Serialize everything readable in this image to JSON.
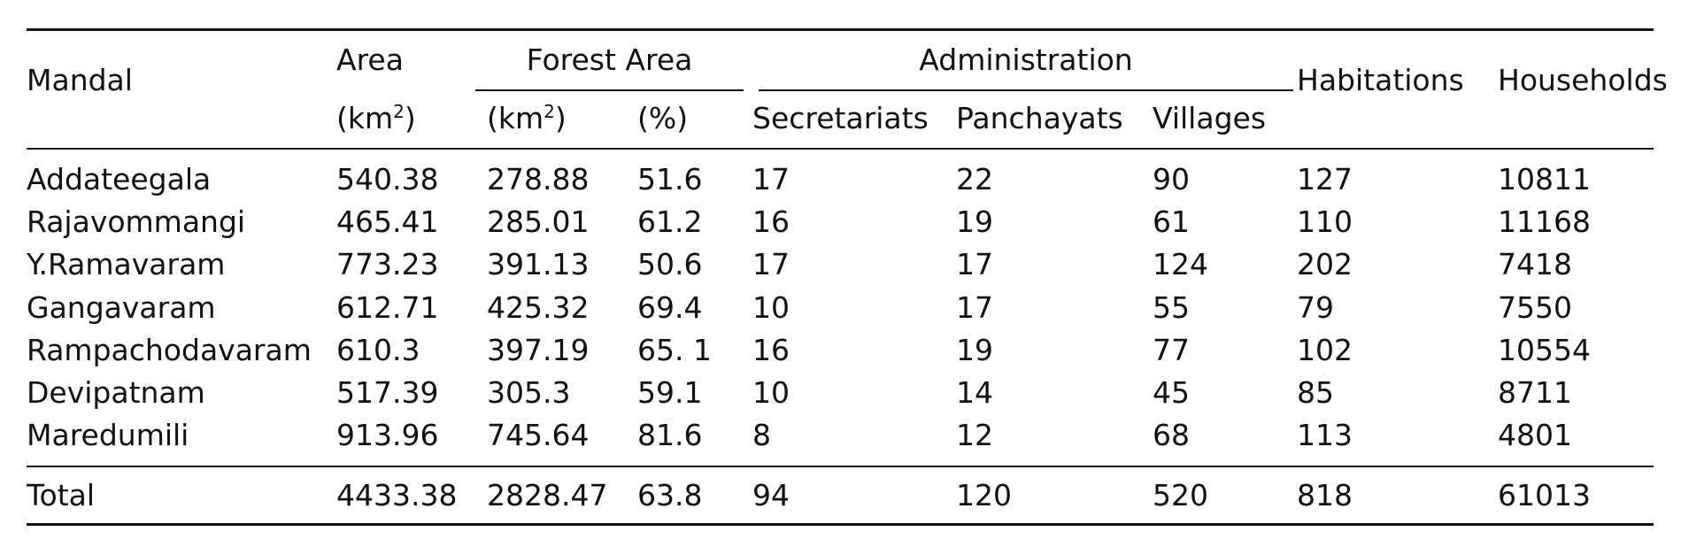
{
  "table": {
    "headers": {
      "mandal": "Mandal",
      "area": "Area",
      "area_unit_base": "(km",
      "area_unit_exp": "2",
      "area_unit_close": ")",
      "forest_area": "Forest Area",
      "forest_km_base": "(km",
      "forest_km_exp": "2",
      "forest_km_close": ")",
      "forest_pct": "(%)",
      "administration": "Administration",
      "secretariats": "Secretariats",
      "panchayats": "Panchayats",
      "villages": "Villages",
      "habitations": "Habitations",
      "households": "Households"
    },
    "rows": [
      {
        "mandal": "Addateegala",
        "area": "540.38",
        "forest_km2": "278.88",
        "forest_pct": "51.6",
        "secretariats": "17",
        "panchayats": "22",
        "villages": "90",
        "habitations": "127",
        "households": "10811"
      },
      {
        "mandal": "Rajavommangi",
        "area": "465.41",
        "forest_km2": "285.01",
        "forest_pct": "61.2",
        "secretariats": "16",
        "panchayats": "19",
        "villages": "61",
        "habitations": "110",
        "households": "11168"
      },
      {
        "mandal": "Y.Ramavaram",
        "area": "773.23",
        "forest_km2": "391.13",
        "forest_pct": "50.6",
        "secretariats": "17",
        "panchayats": "17",
        "villages": "124",
        "habitations": "202",
        "households": "7418"
      },
      {
        "mandal": "Gangavaram",
        "area": "612.71",
        "forest_km2": "425.32",
        "forest_pct": "69.4",
        "secretariats": "10",
        "panchayats": "17",
        "villages": "55",
        "habitations": "79",
        "households": "7550"
      },
      {
        "mandal": "Rampachodavaram",
        "area": "610.3",
        "forest_km2": "397.19",
        "forest_pct": "65. 1",
        "secretariats": "16",
        "panchayats": "19",
        "villages": "77",
        "habitations": "102",
        "households": "10554"
      },
      {
        "mandal": "Devipatnam",
        "area": "517.39",
        "forest_km2": "305.3",
        "forest_pct": "59.1",
        "secretariats": "10",
        "panchayats": "14",
        "villages": "45",
        "habitations": "85",
        "households": "8711"
      },
      {
        "mandal": "Maredumili",
        "area": "913.96",
        "forest_km2": "745.64",
        "forest_pct": "81.6",
        "secretariats": "8",
        "panchayats": "12",
        "villages": "68",
        "habitations": "113",
        "households": "4801"
      }
    ],
    "total": {
      "mandal": "Total",
      "area": "4433.38",
      "forest_km2": "2828.47",
      "forest_pct": "63.8",
      "secretariats": "94",
      "panchayats": "120",
      "villages": "520",
      "habitations": "818",
      "households": "61013"
    }
  }
}
